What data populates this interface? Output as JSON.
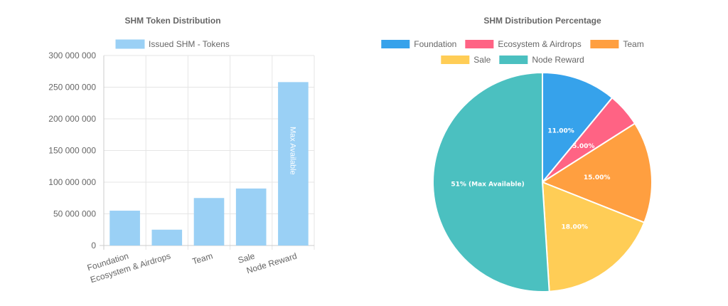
{
  "chart_data": [
    {
      "type": "bar",
      "title": "SHM Token Distribution",
      "legend": {
        "label": "Issued SHM - Tokens",
        "color": "#9ad0f5",
        "position": "top"
      },
      "categories": [
        "Foundation",
        "Ecosystem & Airdrops",
        "Team",
        "Sale",
        "Node Reward"
      ],
      "values": [
        55000000,
        25000000,
        75000000,
        90000000,
        258000000
      ],
      "ylim": [
        0,
        300000000
      ],
      "yticks": [
        "0",
        "50 000 000",
        "100 000 000",
        "150 000 000",
        "200 000 000",
        "250 000 000",
        "300 000 000"
      ],
      "annotation": "Max Available",
      "grid": true
    },
    {
      "type": "pie",
      "title": "SHM Distribution Percentage",
      "labels": [
        "Foundation",
        "Ecosystem & Airdrops",
        "Team",
        "Sale",
        "Node Reward"
      ],
      "values": [
        11,
        5,
        15,
        18,
        51
      ],
      "slice_labels": [
        "11.00%",
        "5.00%",
        "15.00%",
        "18.00%",
        "51% (Max Available)"
      ],
      "colors": [
        "#36a2eb",
        "#ff6384",
        "#ff9f40",
        "#ffcd56",
        "#4bc0c0"
      ],
      "legend_position": "top"
    }
  ]
}
